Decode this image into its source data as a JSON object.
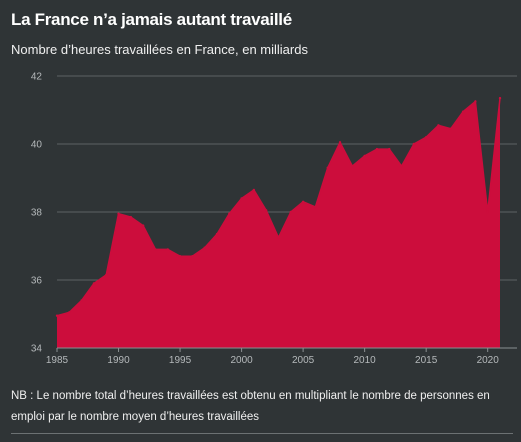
{
  "title": "La France n’a jamais autant travaillé",
  "subtitle": "Nombre d’heures travaillées en France, en milliards",
  "note": "NB : Le nombre total d’heures travaillées est obtenu en multipliant le nombre de personnes en emploi par le nombre moyen d’heures travaillées",
  "colors": {
    "background": "#2f3436",
    "area": "#cc0d3c",
    "grid": "#5d6264",
    "tick_text": "#b5b9bb"
  },
  "chart_data": {
    "type": "area",
    "title": "La France n’a jamais autant travaillé",
    "subtitle": "Nombre d’heures travaillées en France, en milliards",
    "xlabel": "",
    "ylabel": "",
    "xlim": [
      1985,
      2021
    ],
    "ylim": [
      34,
      42
    ],
    "x_ticks": [
      1985,
      1990,
      1995,
      2000,
      2005,
      2010,
      2015,
      2020
    ],
    "y_ticks": [
      34,
      36,
      38,
      40,
      42
    ],
    "grid": "horizontal",
    "legend": "none",
    "series": [
      {
        "x": [
          1985,
          1986,
          1987,
          1988,
          1989,
          1990,
          1991,
          1992,
          1993,
          1994,
          1995,
          1996,
          1997,
          1998,
          1999,
          2000,
          2001,
          2002,
          2003,
          2004,
          2005,
          2006,
          2007,
          2008,
          2009,
          2010,
          2011,
          2012,
          2013,
          2014,
          2015,
          2016,
          2017,
          2018,
          2019,
          2020,
          2021
        ],
        "values": [
          34.95,
          35.05,
          35.4,
          35.9,
          36.15,
          37.95,
          37.85,
          37.6,
          36.9,
          36.9,
          36.7,
          36.7,
          36.95,
          37.35,
          37.95,
          38.4,
          38.65,
          38.05,
          37.25,
          38.0,
          38.3,
          38.15,
          39.3,
          40.05,
          39.35,
          39.65,
          39.85,
          39.85,
          39.35,
          40.0,
          40.2,
          40.55,
          40.45,
          40.95,
          41.25,
          38.0,
          41.35
        ]
      }
    ]
  }
}
